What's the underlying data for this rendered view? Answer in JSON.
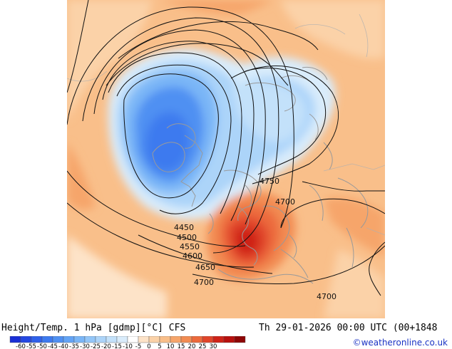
{
  "header": {
    "left_title": "Height/Temp. 1 hPa [gdmp][°C] CFS",
    "right_title": "Th 29-01-2026 00:00 UTC (00+1848"
  },
  "credit": "©weatheronline.co.uk",
  "colors": {
    "background": "#ffffff",
    "contour_line": "#111111",
    "coastline": "#9a9a9a",
    "credit_text": "#1a33c4"
  },
  "legend": {
    "colors": [
      "#1a2fd6",
      "#2448e2",
      "#2f61ea",
      "#3d7aef",
      "#4f90f2",
      "#63a4f5",
      "#7ab6f7",
      "#93c6f8",
      "#acd4f9",
      "#c3e1fa",
      "#d9ecfb",
      "#ffffff",
      "#fde3c8",
      "#fbd2a8",
      "#f9bf8a",
      "#f6a56a",
      "#f28c52",
      "#ec6a3c",
      "#e0452a",
      "#cf2318",
      "#b8100e",
      "#8e0606"
    ],
    "ticks": [
      "-60",
      "-55",
      "-50",
      "-45",
      "-40",
      "-35",
      "-30",
      "-25",
      "-20",
      "-15",
      "-10",
      "-5",
      "0",
      "5",
      "10",
      "15",
      "20",
      "25",
      "30"
    ]
  },
  "map": {
    "contour_labels": [
      {
        "text": "4750"
      },
      {
        "text": "4700"
      },
      {
        "text": "4450"
      },
      {
        "text": "4500"
      },
      {
        "text": "4550"
      },
      {
        "text": "4600"
      },
      {
        "text": "4650"
      },
      {
        "text": "4700"
      },
      {
        "text": "4700"
      }
    ]
  }
}
